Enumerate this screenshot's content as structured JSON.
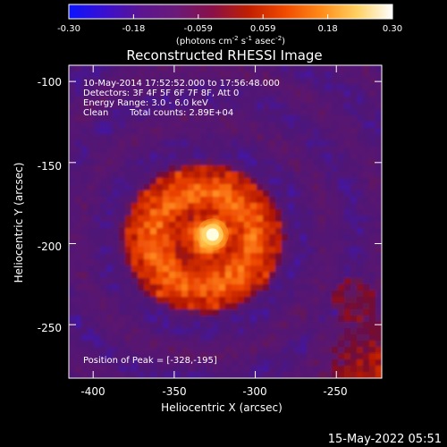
{
  "colorbar": {
    "ticks": [
      "-0.30",
      "-0.18",
      "-0.059",
      "0.059",
      "0.18",
      "0.30"
    ],
    "unit_main": "(photons cm",
    "unit_exp1": "-2",
    "unit_mid": " s",
    "unit_exp2": "-1",
    "unit_mid2": " asec",
    "unit_exp3": "-2",
    "unit_end": ")",
    "range": [
      -0.3,
      0.3
    ],
    "colormap": [
      "#0a14ff",
      "#3a0fd0",
      "#5b1590",
      "#6a1a78",
      "#8a1048",
      "#c01f00",
      "#f04a00",
      "#ff8a18",
      "#ffd060",
      "#ffffff"
    ]
  },
  "image": {
    "title": "Reconstructed RHESSI Image",
    "annotations": {
      "time_range": "10-May-2014 17:52:52.000 to 17:56:48.000",
      "detectors": "Detectors: 3F 4F 5F 6F 7F 8F, Att 0",
      "energy": "Energy Range: 3.0 - 6.0 keV",
      "clean_label": "Clean",
      "counts": "Total counts: 2.89E+04",
      "peak": "Position of Peak = [-328,-195]"
    },
    "peak_position": [
      -328,
      -195
    ],
    "source_center": [
      -332,
      -197
    ]
  },
  "chart_data": {
    "type": "heatmap",
    "xlabel": "Heliocentric X (arcsec)",
    "ylabel": "Heliocentric Y (arcsec)",
    "xlim": [
      -415,
      -222
    ],
    "ylim": [
      -283,
      -90
    ],
    "x_ticks": [
      -400,
      -350,
      -300,
      -250
    ],
    "y_ticks": [
      -100,
      -150,
      -200,
      -250
    ],
    "x_tick_labels": [
      "-400",
      "-350",
      "-300",
      "-250"
    ],
    "y_tick_labels": [
      "-100",
      "-150",
      "-200",
      "-250"
    ],
    "peak_value": 0.3
  },
  "footer": {
    "timestamp": "15-May-2022 05:51"
  }
}
